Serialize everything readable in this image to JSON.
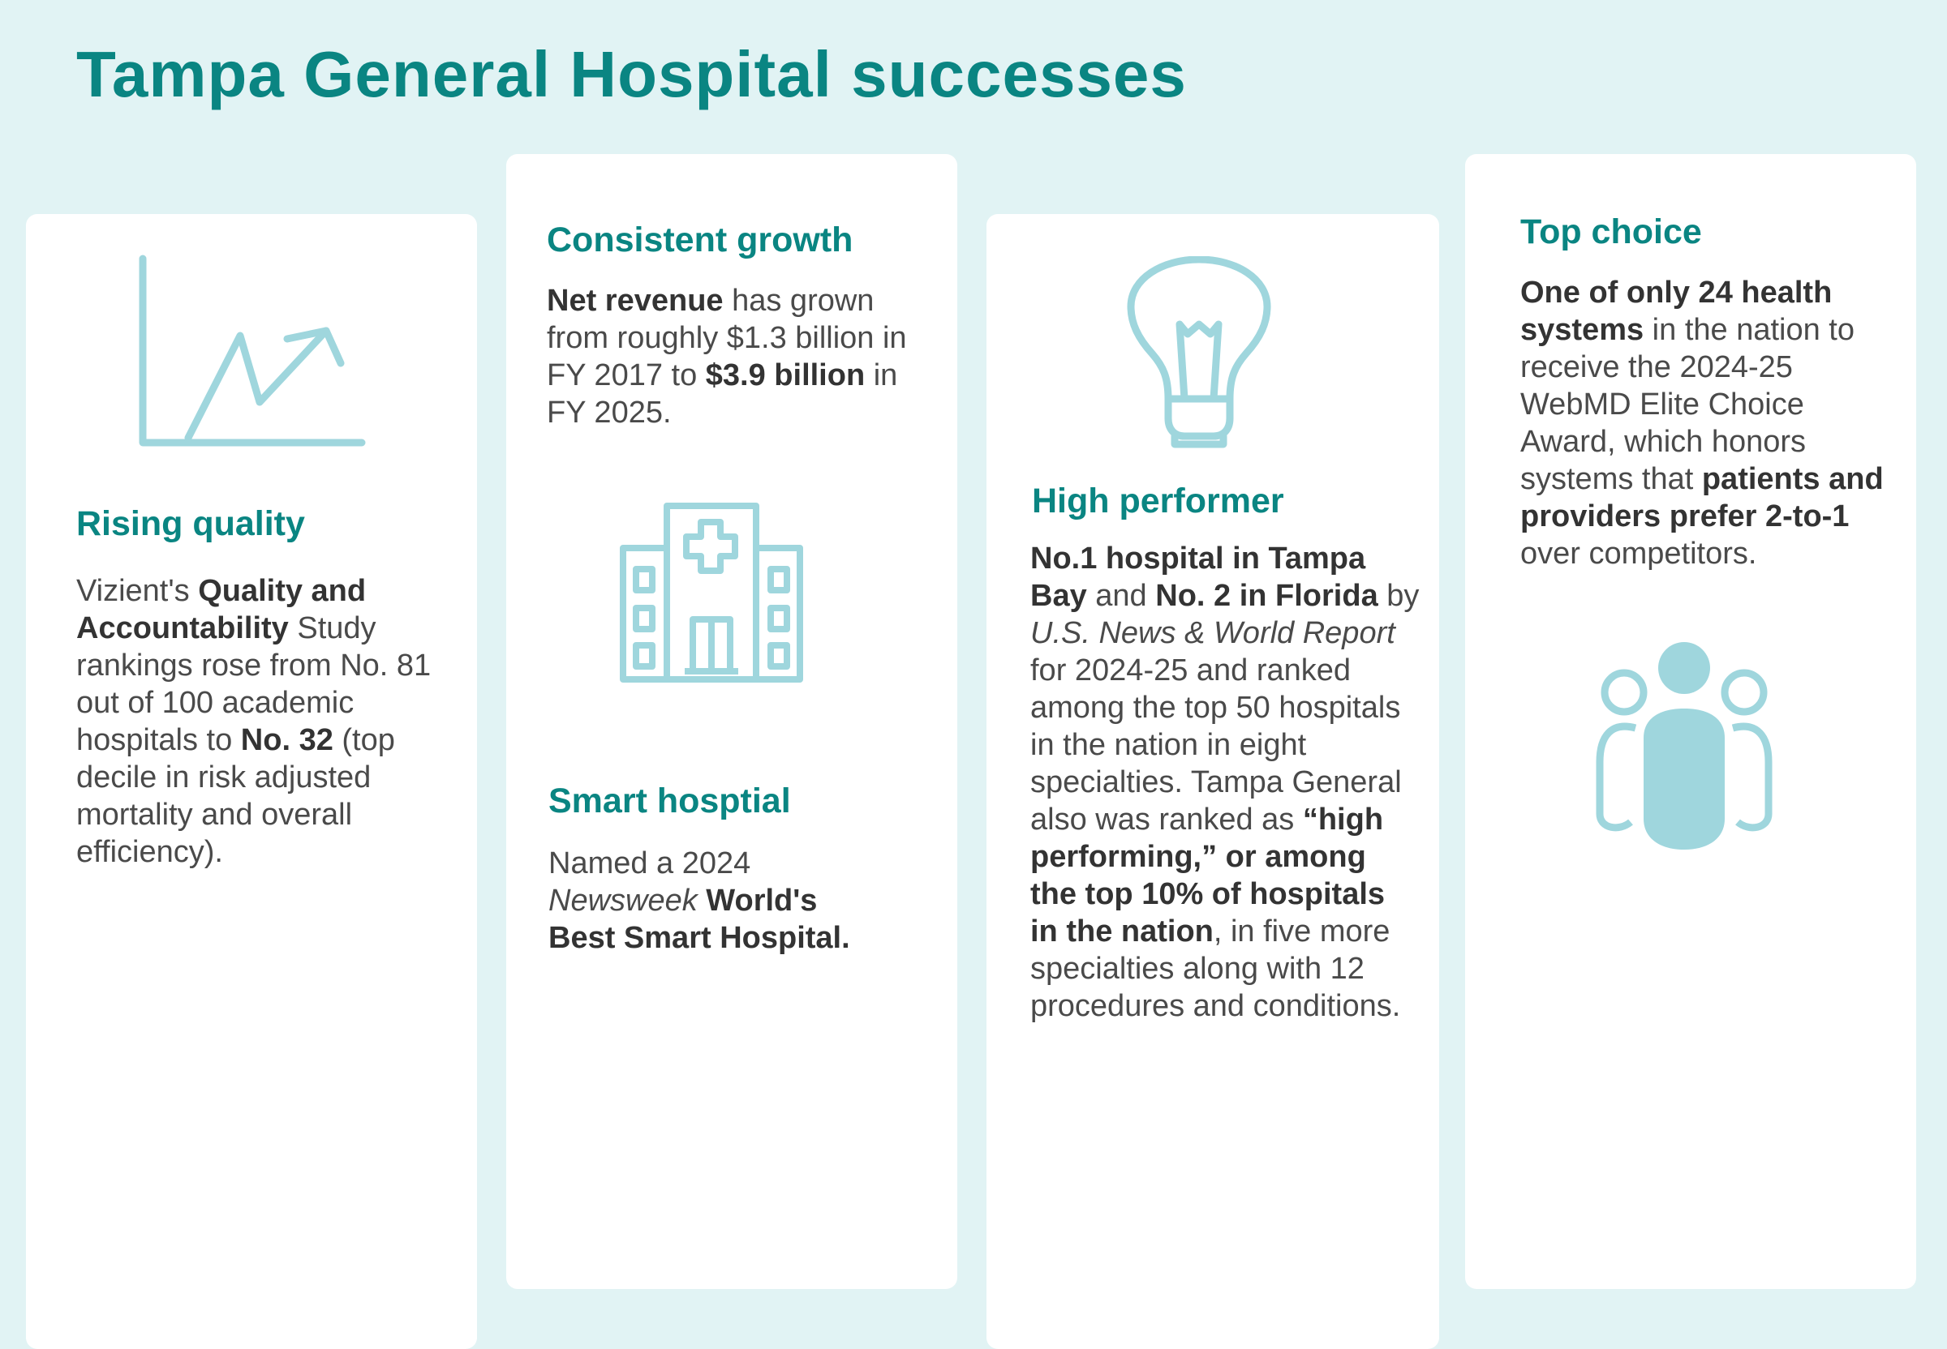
{
  "page": {
    "title": "Tampa General Hospital successes",
    "accent_color": "#0a8582",
    "icon_color": "#9fd6dd",
    "background_color": "#e1f3f4"
  },
  "cards": [
    {
      "heading": "Rising quality",
      "icon": "trending-chart-icon",
      "body": [
        {
          "text": "Vizient's "
        },
        {
          "text": "Quality and Accountability",
          "bold": true
        },
        {
          "text": " Study rankings rose from No. 81 out of 100 academic hospitals to "
        },
        {
          "text": "No. 32",
          "bold": true
        },
        {
          "text": " (top decile in risk adjusted mortality and overall efficiency)."
        }
      ]
    },
    {
      "heading": "Consistent growth",
      "body": [
        {
          "text": "Net revenue",
          "bold": true
        },
        {
          "text": " has grown from roughly $1.3 billion in FY 2017 to "
        },
        {
          "text": "$3.9 billion",
          "bold": true
        },
        {
          "text": " in FY 2025."
        }
      ],
      "icon": "hospital-building-icon",
      "heading_2": "Smart hosptial",
      "body_2": [
        {
          "text": "Named a 2024 "
        },
        {
          "text": "Newsweek",
          "italic": true
        },
        {
          "text": " "
        },
        {
          "text": "World's Best Smart Hospital.",
          "bold": true
        }
      ]
    },
    {
      "heading": "High performer",
      "icon": "lightbulb-icon",
      "body": [
        {
          "text": "No.1 hospital in Tampa Bay",
          "bold": true
        },
        {
          "text": " and "
        },
        {
          "text": "No. 2 in Florida",
          "bold": true
        },
        {
          "text": " by "
        },
        {
          "text": "U.S. News & World Report",
          "italic": true
        },
        {
          "text": " for 2024-25 and ranked among the top 50 hospitals in the nation in eight specialties. Tampa General also was ranked as "
        },
        {
          "text": "“high performing,” or among the top 10% of hospitals in the nation",
          "bold": true
        },
        {
          "text": ", in five more specialties along with 12 procedures and conditions."
        }
      ]
    },
    {
      "heading": "Top choice",
      "body": [
        {
          "text": "One of only 24 health systems",
          "bold": true
        },
        {
          "text": " in the nation to receive the 2024-25 WebMD Elite Choice Award, which honors systems that "
        },
        {
          "text": "patients and providers prefer 2-to-1",
          "bold": true
        },
        {
          "text": " over competitors."
        }
      ],
      "icon": "group-of-people-icon"
    }
  ]
}
